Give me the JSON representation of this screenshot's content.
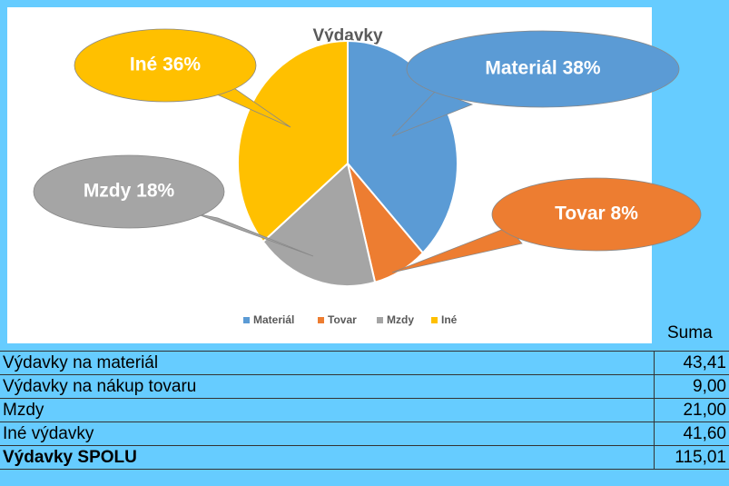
{
  "chart_data": {
    "type": "pie",
    "title": "Výdavky",
    "categories": [
      "Materiál",
      "Tovar",
      "Mzdy",
      "Iné"
    ],
    "values": [
      38,
      8,
      18,
      36
    ],
    "value_labels": [
      "Materiál 38%",
      "Tovar 8%",
      "Mzdy 18%",
      "Iné 36%"
    ],
    "colors": [
      "#5b9bd5",
      "#ed7d31",
      "#a5a5a5",
      "#ffc000"
    ],
    "legend": "bottom"
  },
  "table": {
    "header": "Suma",
    "rows": [
      [
        "Výdavky na materiál",
        "43,41"
      ],
      [
        "Výdavky na nákup tovaru",
        "9,00"
      ],
      [
        "Mzdy",
        "21,00"
      ],
      [
        "Iné výdavky",
        "41,60"
      ],
      [
        "Výdavky SPOLU",
        "115,01"
      ]
    ]
  }
}
